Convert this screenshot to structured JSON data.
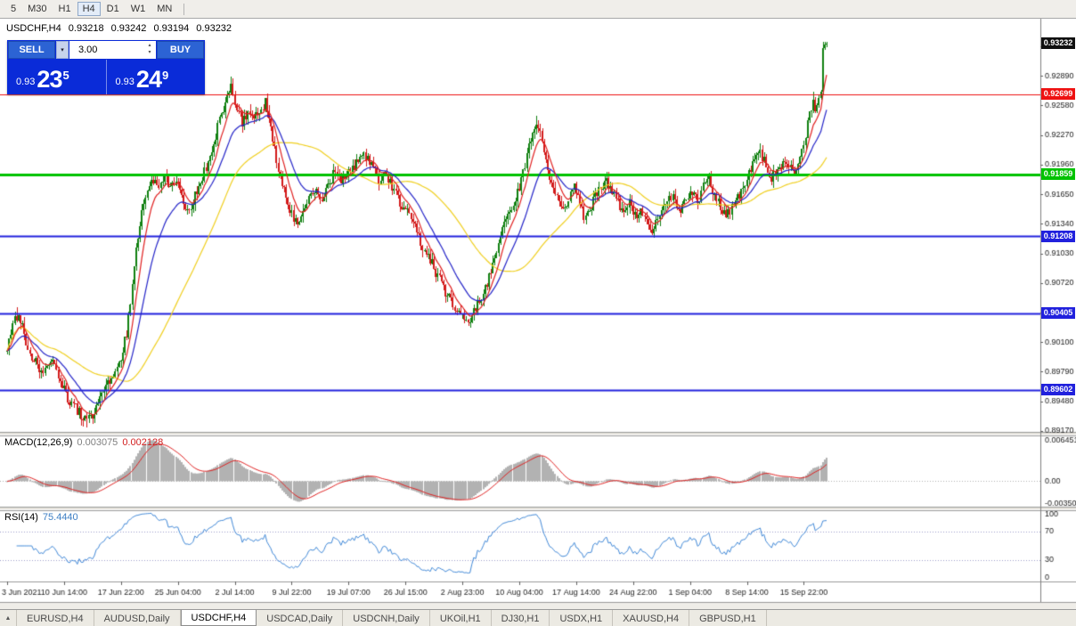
{
  "toolbar": {
    "timeframes": [
      "5",
      "M30",
      "H1",
      "H4",
      "D1",
      "W1",
      "MN"
    ],
    "active": "H4"
  },
  "quote": {
    "symbol": "USDCHF,H4",
    "open": "0.93218",
    "high": "0.93242",
    "low": "0.93194",
    "close": "0.93232"
  },
  "trade_panel": {
    "sell_label": "SELL",
    "buy_label": "BUY",
    "volume": "3.00",
    "sell_price": {
      "prefix": "0.93",
      "big": "23",
      "pip": "5"
    },
    "buy_price": {
      "prefix": "0.93",
      "big": "24",
      "pip": "9"
    }
  },
  "icons": {
    "dropdown": "▾",
    "spinner_up": "▴",
    "spinner_down": "▾",
    "tab_scroll": "▲"
  },
  "ui_colors": {
    "panel_blue": "#0a2bd8",
    "button_blue": "#2c63d4"
  },
  "chart_data": {
    "type": "candlestick+indicators",
    "symbol": "USDCHF",
    "period": "H4",
    "colors": {
      "candle_up": "#118011",
      "candle_down": "#d21a1a",
      "macd_hist": "#b2b2b2",
      "macd_signal": "#e01f1f",
      "rsi_line": "#4189d8",
      "rsi_levels": "#9c9ccc"
    },
    "price_axis": {
      "view_top": 0.9347,
      "view_bottom": 0.8916,
      "ticks": [
        0.932,
        0.9289,
        0.9258,
        0.9227,
        0.9196,
        0.9165,
        0.9134,
        0.9103,
        0.9072,
        0.9041,
        0.901,
        0.8979,
        0.8948,
        0.8917
      ]
    },
    "hlines": [
      {
        "value": 0.93232,
        "label": "0.93232",
        "color": "#101010",
        "line": false,
        "width": 0
      },
      {
        "value": 0.92699,
        "label": "0.92699",
        "color": "#ee1111",
        "line": true,
        "width": 1
      },
      {
        "value": 0.91859,
        "label": "0.91859",
        "color": "#00c200",
        "line": true,
        "width": 3
      },
      {
        "value": 0.91208,
        "label": "0.91208",
        "color": "#2121dd",
        "line": true,
        "width": 2
      },
      {
        "value": 0.90405,
        "label": "0.90405",
        "color": "#2121dd",
        "line": true,
        "width": 2
      },
      {
        "value": 0.89602,
        "label": "0.89602",
        "color": "#2121dd",
        "line": true,
        "width": 2
      }
    ],
    "moving_averages": [
      {
        "type": "sma",
        "period": 55,
        "color": "#f0cf1e"
      },
      {
        "type": "ema",
        "period": 21,
        "color": "#2424c8"
      },
      {
        "type": "ema",
        "period": 8,
        "color": "#e01f1f"
      }
    ],
    "candles": {
      "count": 433,
      "anchors": [
        [
          0,
          0.9
        ],
        [
          3,
          0.903
        ],
        [
          6,
          0.9038
        ],
        [
          9,
          0.9018
        ],
        [
          13,
          0.8995
        ],
        [
          18,
          0.8978
        ],
        [
          23,
          0.8992
        ],
        [
          28,
          0.897
        ],
        [
          32,
          0.8952
        ],
        [
          37,
          0.8938
        ],
        [
          42,
          0.8928
        ],
        [
          46,
          0.8935
        ],
        [
          50,
          0.8958
        ],
        [
          55,
          0.8972
        ],
        [
          59,
          0.8985
        ],
        [
          63,
          0.902
        ],
        [
          66,
          0.907
        ],
        [
          69,
          0.912
        ],
        [
          72,
          0.9155
        ],
        [
          76,
          0.9183
        ],
        [
          80,
          0.9168
        ],
        [
          83,
          0.9188
        ],
        [
          86,
          0.9173
        ],
        [
          90,
          0.918
        ],
        [
          93,
          0.915
        ],
        [
          96,
          0.9143
        ],
        [
          99,
          0.9165
        ],
        [
          103,
          0.9182
        ],
        [
          107,
          0.9205
        ],
        [
          111,
          0.9235
        ],
        [
          115,
          0.9262
        ],
        [
          118,
          0.9276
        ],
        [
          121,
          0.9258
        ],
        [
          124,
          0.924
        ],
        [
          127,
          0.925
        ],
        [
          130,
          0.9243
        ],
        [
          133,
          0.9254
        ],
        [
          136,
          0.926
        ],
        [
          139,
          0.9235
        ],
        [
          142,
          0.92
        ],
        [
          145,
          0.9175
        ],
        [
          148,
          0.9155
        ],
        [
          152,
          0.9135
        ],
        [
          155,
          0.914
        ],
        [
          158,
          0.9158
        ],
        [
          162,
          0.917
        ],
        [
          165,
          0.9158
        ],
        [
          168,
          0.9172
        ],
        [
          172,
          0.9185
        ],
        [
          176,
          0.918
        ],
        [
          180,
          0.919
        ],
        [
          184,
          0.9198
        ],
        [
          188,
          0.9205
        ],
        [
          192,
          0.9195
        ],
        [
          196,
          0.918
        ],
        [
          200,
          0.9185
        ],
        [
          204,
          0.917
        ],
        [
          207,
          0.9155
        ],
        [
          211,
          0.9145
        ],
        [
          215,
          0.913
        ],
        [
          219,
          0.911
        ],
        [
          223,
          0.9095
        ],
        [
          227,
          0.908
        ],
        [
          231,
          0.9062
        ],
        [
          235,
          0.9048
        ],
        [
          238,
          0.904
        ],
        [
          241,
          0.9035
        ],
        [
          244,
          0.9032
        ],
        [
          247,
          0.9045
        ],
        [
          250,
          0.9058
        ],
        [
          253,
          0.9072
        ],
        [
          256,
          0.9095
        ],
        [
          259,
          0.9115
        ],
        [
          262,
          0.9132
        ],
        [
          265,
          0.9148
        ],
        [
          268,
          0.9162
        ],
        [
          271,
          0.918
        ],
        [
          274,
          0.9205
        ],
        [
          277,
          0.9228
        ],
        [
          279,
          0.9238
        ],
        [
          281,
          0.923
        ],
        [
          284,
          0.92
        ],
        [
          287,
          0.9178
        ],
        [
          290,
          0.9162
        ],
        [
          293,
          0.915
        ],
        [
          296,
          0.9158
        ],
        [
          299,
          0.9172
        ],
        [
          302,
          0.916
        ],
        [
          304,
          0.9138
        ],
        [
          307,
          0.9148
        ],
        [
          310,
          0.9162
        ],
        [
          313,
          0.9172
        ],
        [
          316,
          0.918
        ],
        [
          319,
          0.9168
        ],
        [
          322,
          0.9155
        ],
        [
          325,
          0.9148
        ],
        [
          328,
          0.9158
        ],
        [
          331,
          0.9142
        ],
        [
          334,
          0.915
        ],
        [
          337,
          0.9135
        ],
        [
          340,
          0.9128
        ],
        [
          343,
          0.9142
        ],
        [
          346,
          0.9155
        ],
        [
          349,
          0.9162
        ],
        [
          352,
          0.9158
        ],
        [
          355,
          0.915
        ],
        [
          358,
          0.9162
        ],
        [
          361,
          0.9168
        ],
        [
          364,
          0.9158
        ],
        [
          367,
          0.9172
        ],
        [
          370,
          0.918
        ],
        [
          373,
          0.9165
        ],
        [
          376,
          0.9152
        ],
        [
          379,
          0.9142
        ],
        [
          382,
          0.9152
        ],
        [
          385,
          0.916
        ],
        [
          388,
          0.9172
        ],
        [
          391,
          0.9185
        ],
        [
          394,
          0.92
        ],
        [
          397,
          0.921
        ],
        [
          400,
          0.9195
        ],
        [
          403,
          0.9182
        ],
        [
          406,
          0.919
        ],
        [
          409,
          0.9198
        ],
        [
          412,
          0.9192
        ],
        [
          415,
          0.9188
        ],
        [
          418,
          0.92
        ],
        [
          421,
          0.9228
        ],
        [
          423,
          0.925
        ],
        [
          425,
          0.9264
        ],
        [
          426,
          0.9252
        ],
        [
          427,
          0.9258
        ],
        [
          428,
          0.9266
        ],
        [
          429,
          0.9272
        ],
        [
          430,
          0.9318
        ],
        [
          431,
          0.9322
        ],
        [
          432,
          0.93232
        ]
      ],
      "spikes": [
        {
          "i": 5,
          "h": 0.9047
        },
        {
          "i": 42,
          "l": 0.8921
        },
        {
          "i": 118,
          "h": 0.9288
        },
        {
          "i": 136,
          "h": 0.9266
        },
        {
          "i": 244,
          "l": 0.9026
        },
        {
          "i": 279,
          "h": 0.9247
        },
        {
          "i": 397,
          "h": 0.9218
        },
        {
          "i": 425,
          "h": 0.9272
        },
        {
          "i": 430,
          "h": 0.9325
        }
      ],
      "last": {
        "o": 0.93218,
        "h": 0.93242,
        "l": 0.93194,
        "c": 0.93232
      }
    },
    "macd": {
      "name": "MACD(12,26,9)",
      "value": "0.003075",
      "signal_value": "0.002128",
      "view_top": 0.0072,
      "view_bottom": -0.004,
      "peak": 0.006451,
      "axis": [
        {
          "v": 0.006451,
          "label": "0.006451"
        },
        {
          "v": 0,
          "label": "0.00"
        },
        {
          "v": -0.0035,
          "label": "-0.00350"
        }
      ]
    },
    "rsi": {
      "name": "RSI(14)",
      "value": "75.4440",
      "levels": [
        70,
        30
      ],
      "axis": [
        {
          "v": 100,
          "label": "100"
        },
        {
          "v": 70,
          "label": "70"
        },
        {
          "v": 30,
          "label": "30"
        },
        {
          "v": 0,
          "label": "0"
        }
      ]
    },
    "time_axis": {
      "step_bars": 30,
      "labels": [
        "3 Jun 2021",
        "10 Jun 14:00",
        "17 Jun 22:00",
        "25 Jun 04:00",
        "2 Jul 14:00",
        "9 Jul 22:00",
        "19 Jul 07:00",
        "26 Jul 15:00",
        "2 Aug 23:00",
        "10 Aug 04:00",
        "17 Aug 14:00",
        "24 Aug 22:00",
        "1 Sep 04:00",
        "8 Sep 14:00",
        "15 Sep 22:00"
      ]
    }
  },
  "tabs": [
    {
      "label": "EURUSD,H4",
      "active": false
    },
    {
      "label": "AUDUSD,Daily",
      "active": false
    },
    {
      "label": "USDCHF,H4",
      "active": true
    },
    {
      "label": "USDCAD,Daily",
      "active": false
    },
    {
      "label": "USDCNH,Daily",
      "active": false
    },
    {
      "label": "UKOil,H1",
      "active": false
    },
    {
      "label": "DJ30,H1",
      "active": false
    },
    {
      "label": "USDX,H1",
      "active": false
    },
    {
      "label": "XAUUSD,H4",
      "active": false
    },
    {
      "label": "GBPUSD,H1",
      "active": false
    }
  ]
}
